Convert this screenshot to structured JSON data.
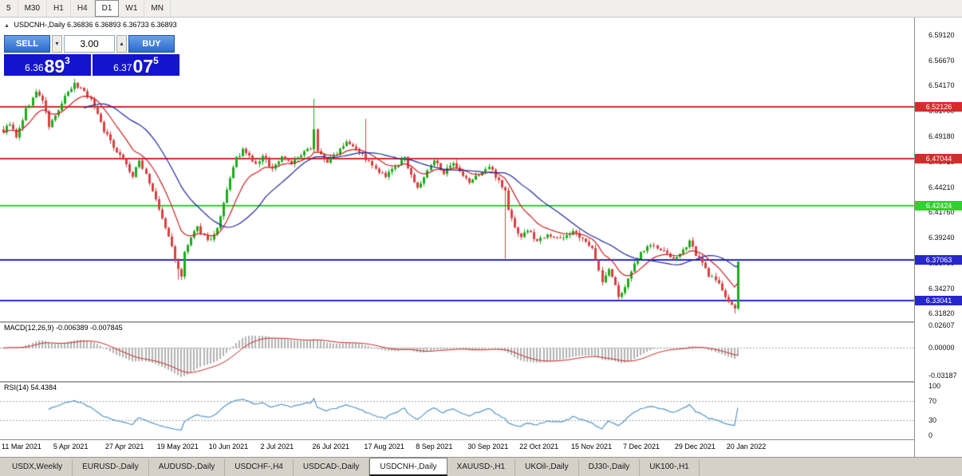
{
  "toolbar": {
    "timeframes": [
      {
        "label": "5",
        "active": false
      },
      {
        "label": "M30",
        "active": false
      },
      {
        "label": "H1",
        "active": false
      },
      {
        "label": "H4",
        "active": false
      },
      {
        "label": "D1",
        "active": true
      },
      {
        "label": "W1",
        "active": false
      },
      {
        "label": "MN",
        "active": false
      }
    ]
  },
  "chart_header": {
    "collapse_icon": "▲",
    "title": "USDCNH-,Daily",
    "ohlc": "6.36836 6.36893 6.36733 6.36893"
  },
  "trade_panel": {
    "sell_label": "SELL",
    "buy_label": "BUY",
    "volume": "3.00",
    "volume_down_icon": "▾",
    "volume_up_icon": "▴",
    "sell_price": {
      "prefix": "6.36",
      "big": "89",
      "sup": "3"
    },
    "buy_price": {
      "prefix": "6.37",
      "big": "07",
      "sup": "5"
    }
  },
  "colors": {
    "bull": "#1bab1b",
    "bear": "#d94040",
    "ma_fast": "#cc2020",
    "ma_slow": "#20269e",
    "macd_hist": "#b2b2b2",
    "macd_signal": "#c62828",
    "rsi_line": "#5596c8",
    "price_box": "#1414cc",
    "grid_dotted": "#a8a8a8"
  },
  "chart_data": {
    "type": "candlestick",
    "symbol": "USDCNH-",
    "timeframe": "Daily",
    "candle_count": 228,
    "y_range": [
      6.312,
      6.607
    ],
    "y_ticks": [
      6.5912,
      6.5667,
      6.5417,
      6.517,
      6.4918,
      6.4671,
      6.4421,
      6.4176,
      6.3924,
      6.3679,
      6.3427,
      6.3182
    ],
    "x_labels": [
      "11 Mar 2021",
      "5 Apr 2021",
      "27 Apr 2021",
      "19 May 2021",
      "10 Jun 2021",
      "2 Jul 2021",
      "26 Jul 2021",
      "17 Aug 2021",
      "8 Sep 2021",
      "30 Sep 2021",
      "22 Oct 2021",
      "15 Nov 2021",
      "7 Dec 2021",
      "29 Dec 2021",
      "20 Jan 2022"
    ],
    "label_every": 16,
    "h_lines": [
      {
        "price": 6.52126,
        "color": "#d42c2c"
      },
      {
        "price": 6.47044,
        "color": "#d42c2c"
      },
      {
        "price": 6.42424,
        "color": "#2fd22f"
      },
      {
        "price": 6.37063,
        "color": "#2626cc"
      },
      {
        "price": 6.33041,
        "color": "#2626cc"
      }
    ],
    "keypoints": [
      [
        0,
        6.497
      ],
      [
        2,
        6.505
      ],
      [
        4,
        6.49
      ],
      [
        7,
        6.518
      ],
      [
        10,
        6.535
      ],
      [
        12,
        6.528
      ],
      [
        14,
        6.502
      ],
      [
        16,
        6.512
      ],
      [
        19,
        6.53
      ],
      [
        22,
        6.543
      ],
      [
        25,
        6.537
      ],
      [
        28,
        6.522
      ],
      [
        31,
        6.498
      ],
      [
        34,
        6.482
      ],
      [
        37,
        6.47
      ],
      [
        40,
        6.452
      ],
      [
        42,
        6.468
      ],
      [
        44,
        6.455
      ],
      [
        46,
        6.438
      ],
      [
        48,
        6.42
      ],
      [
        50,
        6.402
      ],
      [
        52,
        6.384
      ],
      [
        54,
        6.36
      ],
      [
        55,
        6.354
      ],
      [
        56,
        6.378
      ],
      [
        58,
        6.392
      ],
      [
        60,
        6.402
      ],
      [
        62,
        6.394
      ],
      [
        64,
        6.39
      ],
      [
        66,
        6.4
      ],
      [
        68,
        6.425
      ],
      [
        70,
        6.452
      ],
      [
        72,
        6.47
      ],
      [
        74,
        6.478
      ],
      [
        76,
        6.472
      ],
      [
        78,
        6.464
      ],
      [
        80,
        6.472
      ],
      [
        83,
        6.46
      ],
      [
        86,
        6.472
      ],
      [
        89,
        6.466
      ],
      [
        92,
        6.473
      ],
      [
        95,
        6.481
      ],
      [
        96,
        6.5
      ],
      [
        97,
        6.477
      ],
      [
        100,
        6.467
      ],
      [
        103,
        6.476
      ],
      [
        106,
        6.488
      ],
      [
        109,
        6.481
      ],
      [
        112,
        6.47
      ],
      [
        115,
        6.459
      ],
      [
        118,
        6.452
      ],
      [
        121,
        6.462
      ],
      [
        124,
        6.47
      ],
      [
        126,
        6.455
      ],
      [
        128,
        6.44
      ],
      [
        130,
        6.452
      ],
      [
        133,
        6.468
      ],
      [
        136,
        6.457
      ],
      [
        139,
        6.464
      ],
      [
        142,
        6.452
      ],
      [
        144,
        6.447
      ],
      [
        147,
        6.455
      ],
      [
        150,
        6.462
      ],
      [
        153,
        6.449
      ],
      [
        155,
        6.438
      ],
      [
        156,
        6.42
      ],
      [
        158,
        6.402
      ],
      [
        160,
        6.394
      ],
      [
        162,
        6.4
      ],
      [
        165,
        6.389
      ],
      [
        168,
        6.397
      ],
      [
        171,
        6.391
      ],
      [
        174,
        6.395
      ],
      [
        176,
        6.398
      ],
      [
        179,
        6.39
      ],
      [
        182,
        6.384
      ],
      [
        183,
        6.372
      ],
      [
        185,
        6.348
      ],
      [
        187,
        6.362
      ],
      [
        190,
        6.336
      ],
      [
        192,
        6.342
      ],
      [
        194,
        6.36
      ],
      [
        197,
        6.378
      ],
      [
        200,
        6.386
      ],
      [
        203,
        6.38
      ],
      [
        206,
        6.374
      ],
      [
        208,
        6.372
      ],
      [
        210,
        6.379
      ],
      [
        212,
        6.391
      ],
      [
        214,
        6.376
      ],
      [
        216,
        6.367
      ],
      [
        218,
        6.356
      ],
      [
        220,
        6.35
      ],
      [
        222,
        6.342
      ],
      [
        224,
        6.33
      ],
      [
        226,
        6.322
      ],
      [
        227,
        6.369
      ]
    ],
    "wick_overrides": [
      {
        "i": 22,
        "h": 6.5485
      },
      {
        "i": 54,
        "l": 6.3515
      },
      {
        "i": 96,
        "h": 6.529
      },
      {
        "i": 112,
        "h": 6.509
      },
      {
        "i": 155,
        "l": 6.372
      },
      {
        "i": 190,
        "l": 6.3305
      },
      {
        "i": 226,
        "l": 6.318
      }
    ],
    "ma_fast_period": 12,
    "ma_slow_period": 26,
    "indicators": {
      "macd": {
        "label": "MACD(12,26,9) -0.006389 -0.007845",
        "fast": 12,
        "slow": 26,
        "signal": 9,
        "ticks": [
          0.02607,
          0.0,
          -0.03187
        ]
      },
      "rsi": {
        "label": "RSI(14) 54.4384",
        "period": 14,
        "ticks": [
          100,
          70,
          30,
          0
        ],
        "levels": [
          70,
          30
        ]
      }
    }
  },
  "bottom_tabs": [
    {
      "label": "USDX,Weekly",
      "active": false
    },
    {
      "label": "EURUSD-,Daily",
      "active": false
    },
    {
      "label": "AUDUSD-,Daily",
      "active": false
    },
    {
      "label": "USDCHF-,H4",
      "active": false
    },
    {
      "label": "USDCAD-,Daily",
      "active": false
    },
    {
      "label": "USDCNH-,Daily",
      "active": true
    },
    {
      "label": "XAUUSD-,H1",
      "active": false
    },
    {
      "label": "UKOil-,Daily",
      "active": false
    },
    {
      "label": "DJ30-,Daily",
      "active": false
    },
    {
      "label": "UK100-,H1",
      "active": false
    }
  ]
}
